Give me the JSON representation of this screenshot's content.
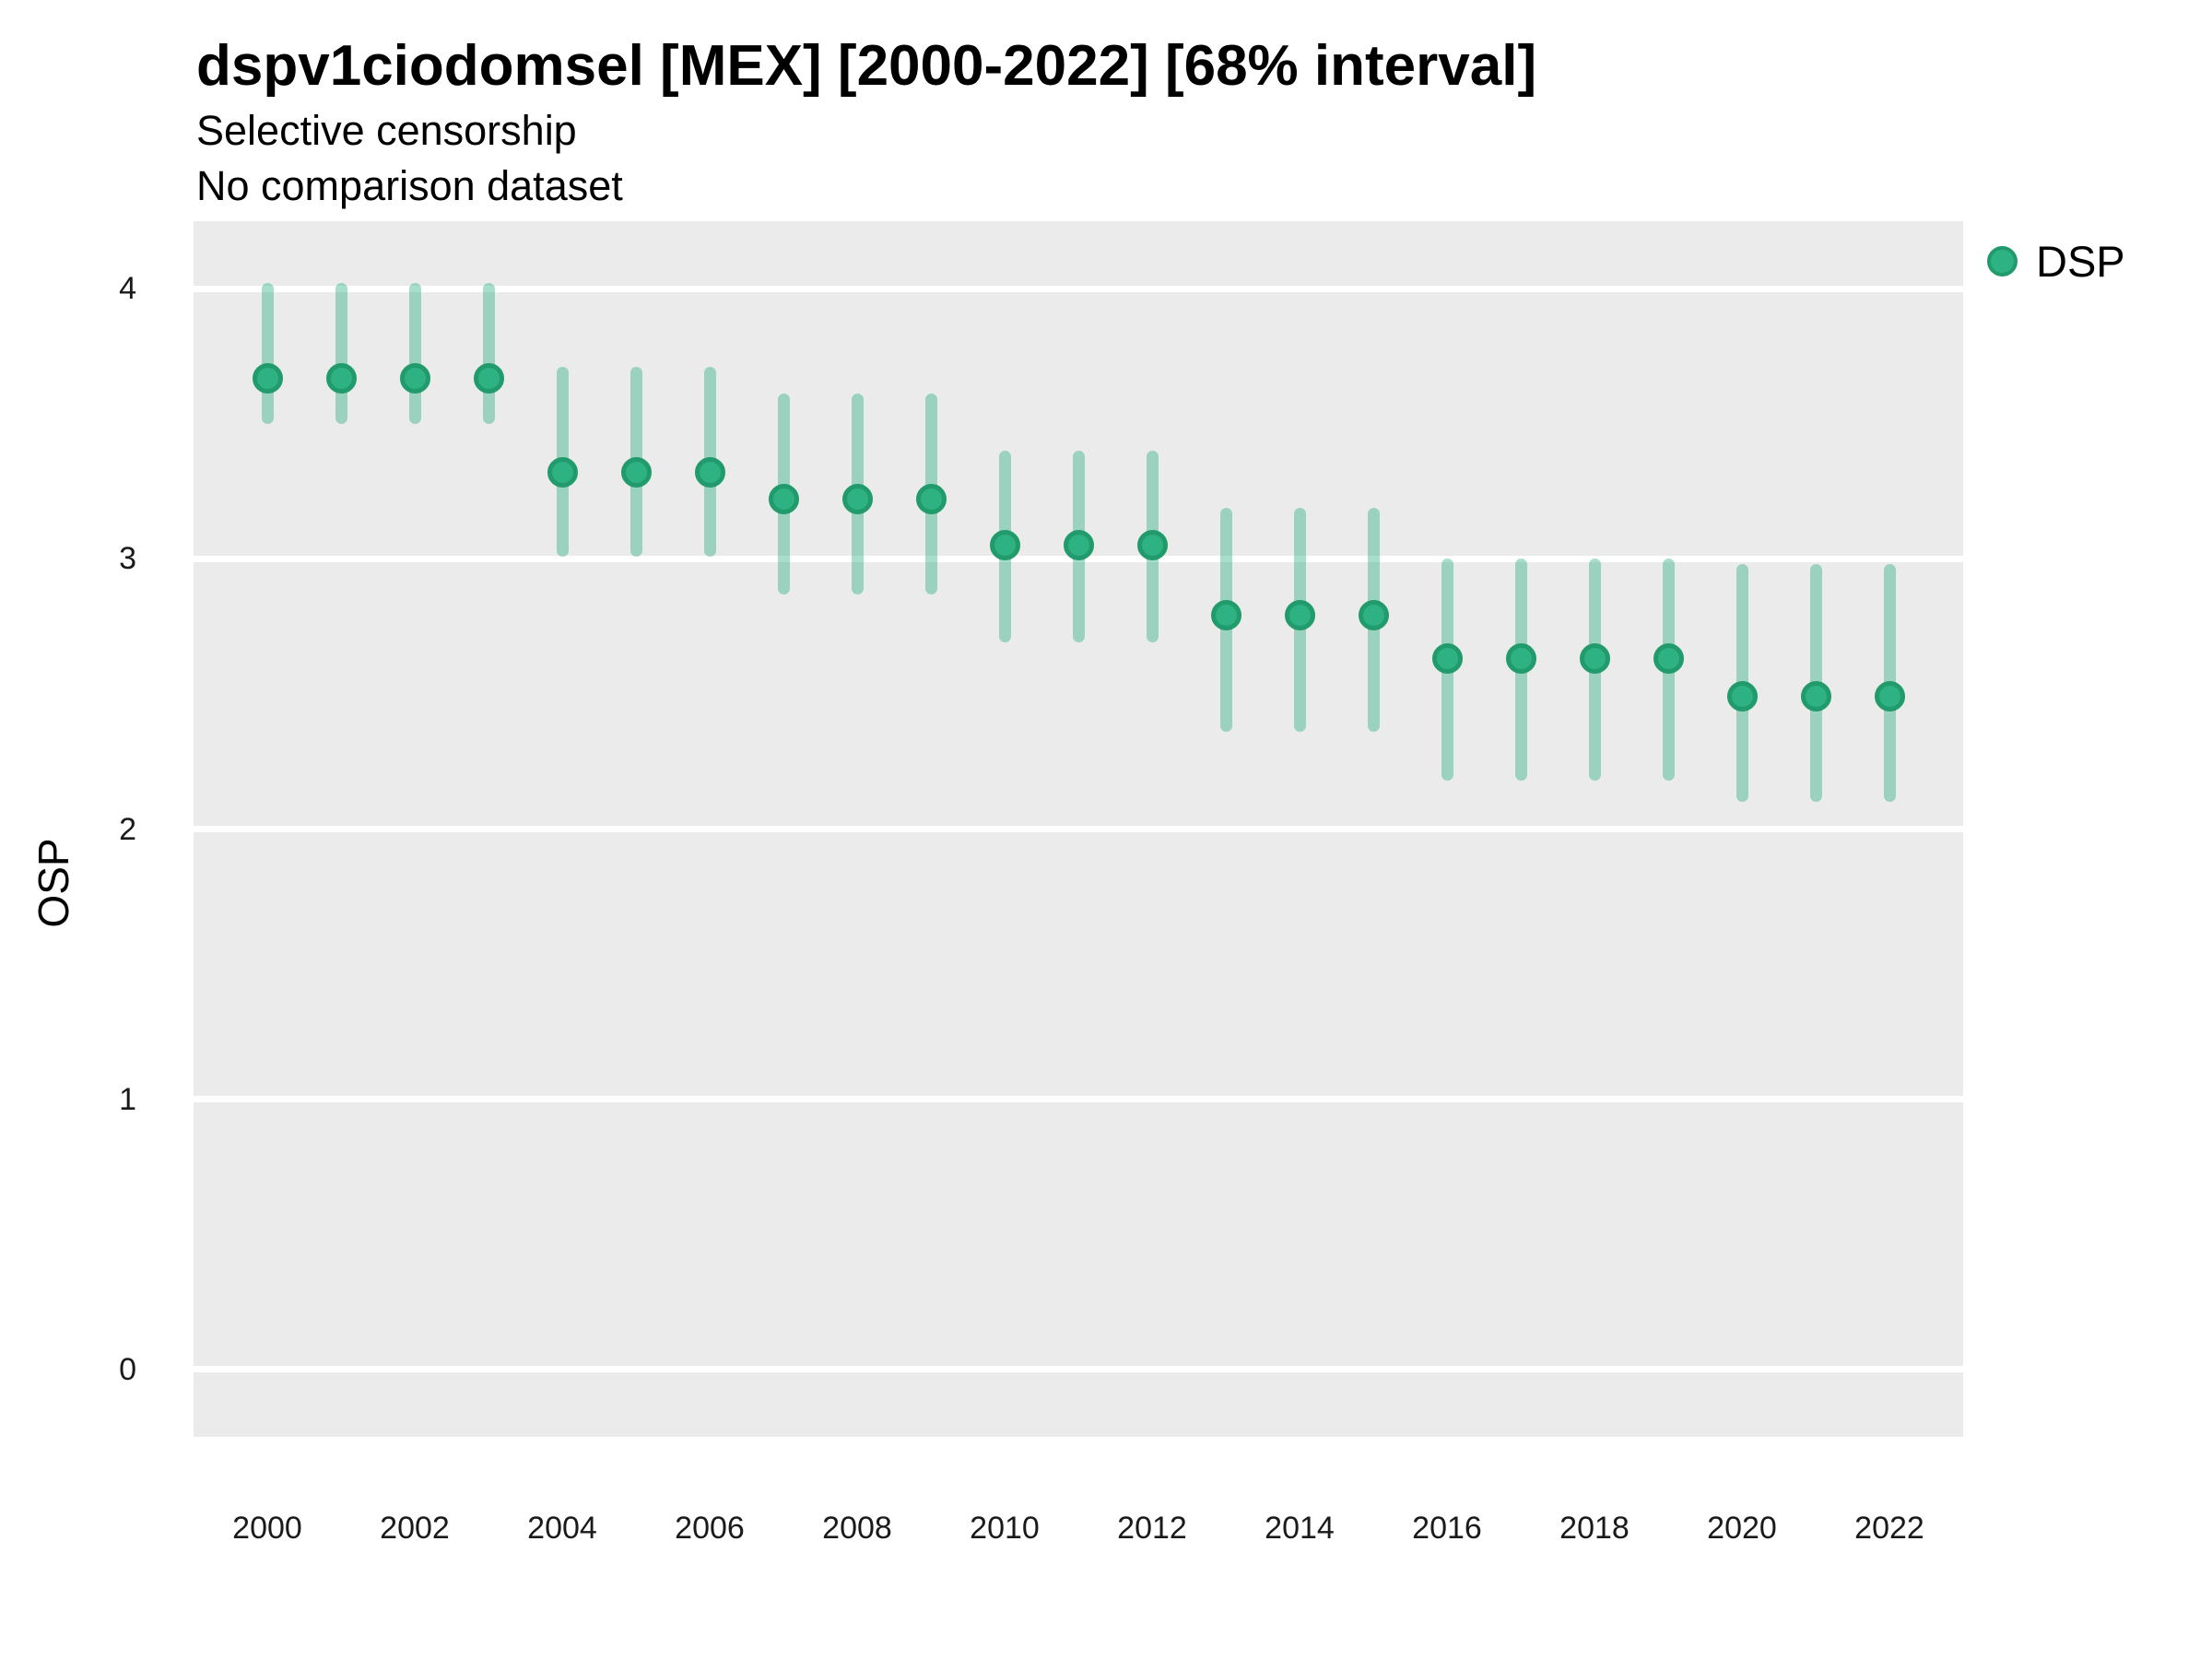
{
  "chart_data": {
    "type": "scatter",
    "title": "dspv1ciodomsel [MEX] [2000-2022] [68% interval]",
    "subtitle": "Selective censorship",
    "note": "No comparison dataset",
    "ylabel": "OSP",
    "xlabel": "",
    "interval": "68%",
    "grid": "major horizontal white lines on gray panel",
    "legend_position": "right-top",
    "xlim": [
      1999,
      2023
    ],
    "ylim": [
      -0.25,
      4.25
    ],
    "x_ticks": [
      2000,
      2002,
      2004,
      2006,
      2008,
      2010,
      2012,
      2014,
      2016,
      2018,
      2020,
      2022
    ],
    "y_ticks": [
      4,
      3,
      2,
      1,
      0
    ],
    "series": [
      {
        "name": "DSP",
        "x": [
          2000,
          2001,
          2002,
          2003,
          2004,
          2005,
          2006,
          2007,
          2008,
          2009,
          2010,
          2011,
          2012,
          2013,
          2014,
          2015,
          2016,
          2017,
          2018,
          2019,
          2020,
          2021,
          2022
        ],
        "y": [
          3.67,
          3.67,
          3.67,
          3.67,
          3.32,
          3.32,
          3.32,
          3.22,
          3.22,
          3.22,
          3.05,
          3.05,
          3.05,
          2.79,
          2.79,
          2.79,
          2.63,
          2.63,
          2.63,
          2.63,
          2.49,
          2.49,
          2.49
        ],
        "y_low": [
          3.52,
          3.52,
          3.52,
          3.52,
          3.03,
          3.03,
          3.03,
          2.89,
          2.89,
          2.89,
          2.71,
          2.71,
          2.71,
          2.38,
          2.38,
          2.38,
          2.2,
          2.2,
          2.2,
          2.2,
          2.12,
          2.12,
          2.12
        ],
        "y_high": [
          4.0,
          4.0,
          4.0,
          4.0,
          3.69,
          3.69,
          3.69,
          3.59,
          3.59,
          3.59,
          3.38,
          3.38,
          3.38,
          3.17,
          3.17,
          3.17,
          2.98,
          2.98,
          2.98,
          2.98,
          2.96,
          2.96,
          2.96
        ]
      }
    ]
  },
  "colors": {
    "point_fill": "#2EB183",
    "point_stroke": "#219B6C",
    "interval_line": "rgba(46,177,131,0.42)",
    "panel_background": "#EBEBEB",
    "gridline": "#FFFFFF",
    "tick_text": "#1a1a1a",
    "title_text": "#000000"
  }
}
